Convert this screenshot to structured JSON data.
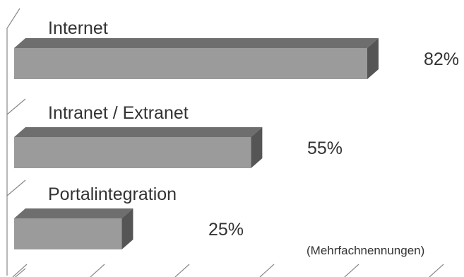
{
  "chart_data": {
    "type": "bar",
    "orientation": "horizontal",
    "style": "3d",
    "categories": [
      "Internet",
      "Intranet / Extranet",
      "Portalintegration"
    ],
    "values": [
      82,
      55,
      25
    ],
    "value_labels": [
      "82%",
      "55%",
      "25%"
    ],
    "xlim": [
      0,
      100
    ],
    "note": "(Mehrfachnennungen)",
    "grid": false,
    "colors": {
      "bar_front": "#9b9b9b",
      "bar_top": "#6e6e6e",
      "bar_side": "#555555",
      "axis": "#888888"
    }
  }
}
